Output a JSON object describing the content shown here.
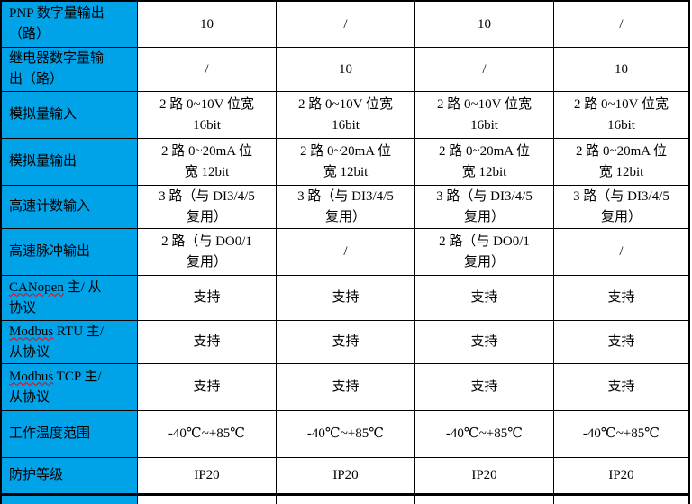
{
  "colors": {
    "header_column_bg": "#00A2E8",
    "grid_border": "#000000",
    "spellcheck_underline": "#FF0000",
    "text": "#000000"
  },
  "table": {
    "rows": [
      {
        "label": "PNP 数字量输出\n（路）",
        "cells": [
          "10",
          "/",
          "10",
          "/"
        ]
      },
      {
        "label": "继电器数字量输\n出（路）",
        "cells": [
          "/",
          "10",
          "/",
          "10"
        ]
      },
      {
        "label": "模拟量输入",
        "cells": [
          "2 路 0~10V 位宽\n16bit",
          "2 路 0~10V 位宽\n16bit",
          "2 路 0~10V 位宽\n16bit",
          "2 路 0~10V 位宽\n16bit"
        ]
      },
      {
        "label": "模拟量输出",
        "cells": [
          "2 路 0~20mA 位\n宽 12bit",
          "2 路 0~20mA 位\n宽 12bit",
          "2 路 0~20mA 位\n宽 12bit",
          "2 路 0~20mA 位\n宽 12bit"
        ]
      },
      {
        "label": "高速计数输入",
        "cells": [
          "3 路（与 DI3/4/5\n复用）",
          "3 路（与 DI3/4/5\n复用）",
          "3 路（与 DI3/4/5\n复用）",
          "3 路（与 DI3/4/5\n复用）"
        ]
      },
      {
        "label": "高速脉冲输出",
        "cells": [
          "2 路（与 DO0/1\n复用）",
          "/",
          "2 路（与 DO0/1\n复用）",
          "/"
        ]
      },
      {
        "label_misspelled": "CANopen",
        "label_rest": " 主/ 从\n协议",
        "cells": [
          "支持",
          "支持",
          "支持",
          "支持"
        ]
      },
      {
        "label_misspelled": "Modbus",
        "label_rest": " RTU 主/\n从协议",
        "cells": [
          "支持",
          "支持",
          "支持",
          "支持"
        ]
      },
      {
        "label_misspelled": "Modbus",
        "label_rest": " TCP 主/\n从协议",
        "cells": [
          "支持",
          "支持",
          "支持",
          "支持"
        ]
      },
      {
        "label": "工作温度范围",
        "cells": [
          "-40℃~+85℃",
          "-40℃~+85℃",
          "-40℃~+85℃",
          "-40℃~+85℃"
        ]
      },
      {
        "label": "防护等级",
        "cells": [
          "IP20",
          "IP20",
          "IP20",
          "IP20"
        ]
      }
    ]
  }
}
